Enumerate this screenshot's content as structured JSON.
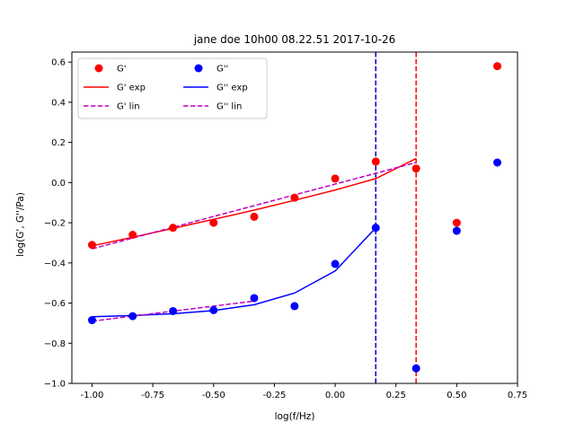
{
  "chart_data": {
    "type": "scatter",
    "title": "jane doe 10h00 08.22.51 2017-10-26",
    "xlabel": "log(f/Hz)",
    "ylabel": "log(G', G''/Pa)",
    "xlim": [
      -1.083,
      0.75
    ],
    "ylim": [
      -1.0,
      0.65
    ],
    "xticks": [
      "-1.00",
      "-0.75",
      "-0.50",
      "-0.25",
      "0.00",
      "0.25",
      "0.50",
      "0.75"
    ],
    "xtick_values": [
      -1.0,
      -0.75,
      -0.5,
      -0.25,
      0.0,
      0.25,
      0.5,
      0.75
    ],
    "yticks": [
      "−1.0",
      "−0.8",
      "−0.6",
      "−0.4",
      "−0.2",
      "0.0",
      "0.2",
      "0.4",
      "0.6"
    ],
    "ytick_values": [
      -1.0,
      -0.8,
      -0.6,
      -0.4,
      -0.2,
      0.0,
      0.2,
      0.4,
      0.6
    ],
    "grid": false,
    "legend_position": "top-left",
    "series": [
      {
        "name": "G'",
        "kind": "scatter",
        "color": "#ff0000",
        "x": [
          -1.0,
          -0.833,
          -0.667,
          -0.5,
          -0.333,
          -0.167,
          0.0,
          0.167,
          0.333,
          0.5,
          0.667
        ],
        "y": [
          -0.31,
          -0.26,
          -0.225,
          -0.2,
          -0.17,
          -0.075,
          0.02,
          0.105,
          0.07,
          -0.2,
          0.58
        ]
      },
      {
        "name": "G'' ",
        "kind": "scatter",
        "color": "#0000ff",
        "x": [
          -1.0,
          -0.833,
          -0.667,
          -0.5,
          -0.333,
          -0.167,
          0.0,
          0.167,
          0.333,
          0.5,
          0.667
        ],
        "y": [
          -0.685,
          -0.665,
          -0.64,
          -0.635,
          -0.575,
          -0.615,
          -0.405,
          -0.225,
          -0.925,
          -0.24,
          0.1
        ]
      },
      {
        "name": "G' exp",
        "kind": "line",
        "color": "#ff0000",
        "dash": "solid",
        "x": [
          -1.0,
          -0.833,
          -0.667,
          -0.5,
          -0.333,
          -0.167,
          0.0,
          0.167,
          0.333
        ],
        "y": [
          -0.315,
          -0.272,
          -0.228,
          -0.183,
          -0.137,
          -0.088,
          -0.037,
          0.02,
          0.12
        ]
      },
      {
        "name": "G'' exp",
        "kind": "line",
        "color": "#0000ff",
        "dash": "solid",
        "x": [
          -1.0,
          -0.833,
          -0.667,
          -0.5,
          -0.333,
          -0.167,
          0.0,
          0.167
        ],
        "y": [
          -0.668,
          -0.662,
          -0.653,
          -0.637,
          -0.608,
          -0.55,
          -0.44,
          -0.225
        ]
      },
      {
        "name": "G' lin",
        "kind": "line",
        "color": "#bf00bf",
        "dash": "dashed",
        "x": [
          -1.0,
          0.333
        ],
        "y": [
          -0.33,
          0.1
        ]
      },
      {
        "name": "G'' lin",
        "kind": "line",
        "color": "#bf00bf",
        "dash": "dashed",
        "x": [
          -1.0,
          -0.333
        ],
        "y": [
          -0.69,
          -0.59
        ]
      }
    ],
    "vlines": [
      {
        "x": 0.167,
        "color": "#0000bf",
        "dash": "dashed"
      },
      {
        "x": 0.333,
        "color": "#ff0000",
        "dash": "dashed"
      }
    ],
    "legend": [
      {
        "label": "G'",
        "kind": "marker",
        "color": "#ff0000"
      },
      {
        "label": "G' exp",
        "kind": "line",
        "color": "#ff0000"
      },
      {
        "label": "G' lin",
        "kind": "dashed",
        "color": "#bf00bf"
      },
      {
        "label": "G''",
        "kind": "marker",
        "color": "#0000ff"
      },
      {
        "label": "G'' exp",
        "kind": "line",
        "color": "#0000ff"
      },
      {
        "label": "G'' lin",
        "kind": "dashed",
        "color": "#bf00bf"
      }
    ]
  }
}
